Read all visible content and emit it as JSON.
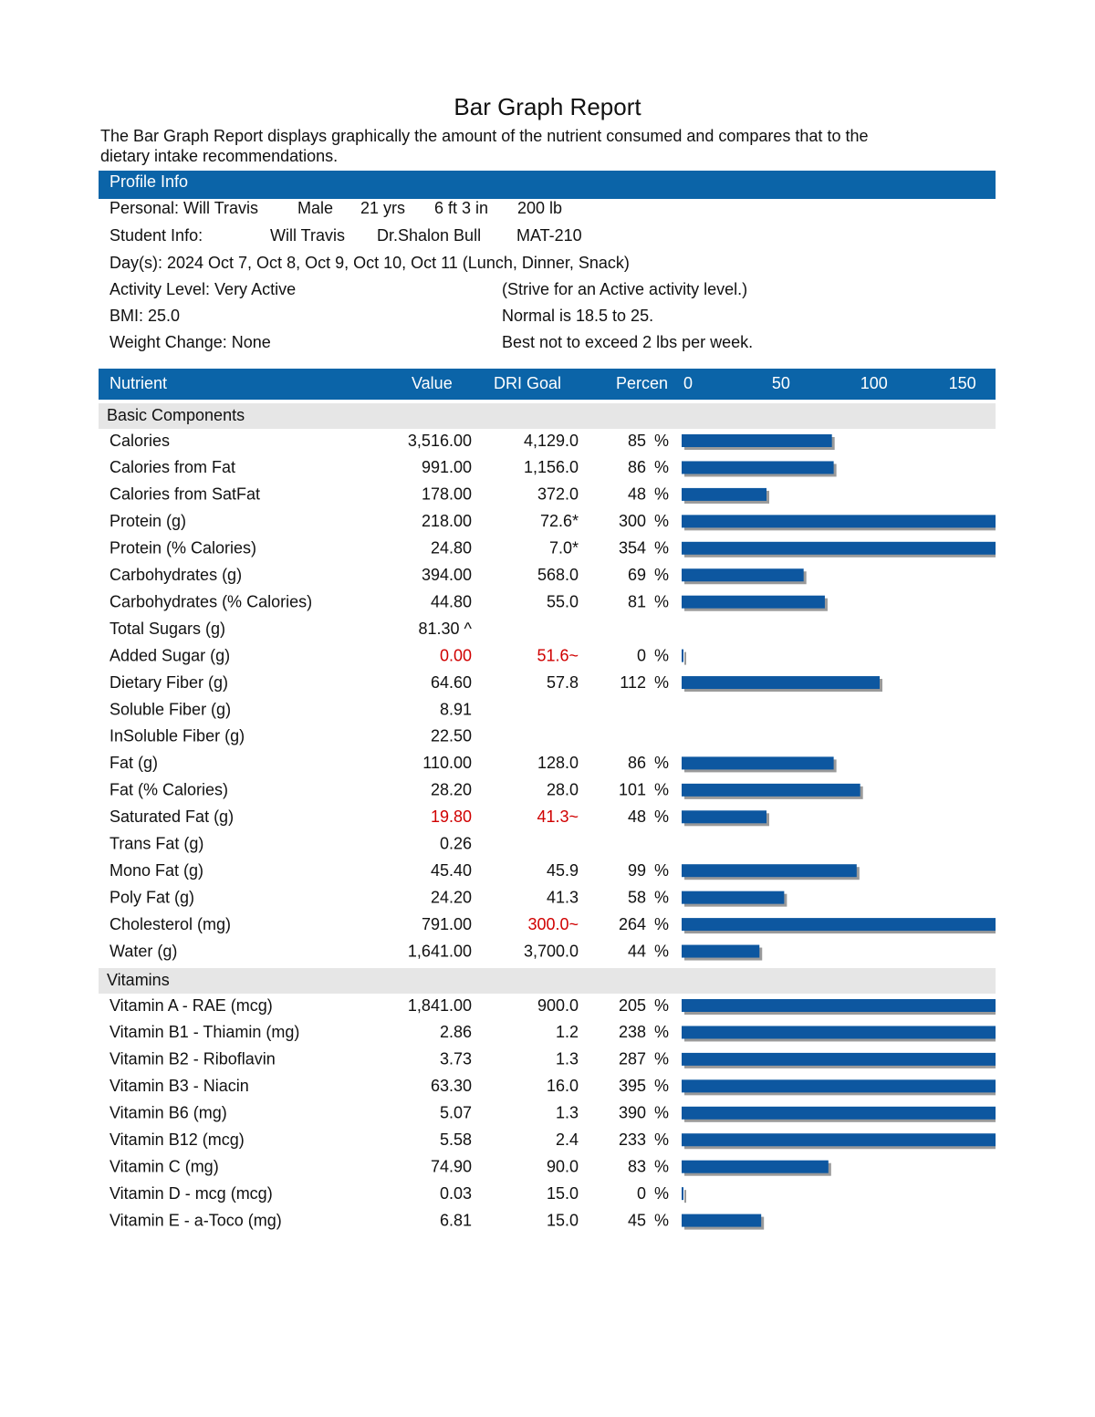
{
  "title": "Bar Graph Report",
  "description": [
    "The Bar Graph Report displays graphically the amount of the nutrient consumed and compares that to the",
    "dietary intake recommendations."
  ],
  "profile": {
    "header": "Profile Info",
    "rows": [
      [
        "Personal: Will Travis",
        "Male",
        "21 yrs",
        "6 ft 3 in",
        "200 lb"
      ],
      [
        "Student Info:",
        "Will Travis",
        "Dr.Shalon Bull",
        "MAT-210"
      ],
      [
        "Day(s):  2024 Oct 7, Oct 8, Oct 9, Oct 10, Oct 11 (Lunch, Dinner, Snack)"
      ],
      [
        "Activity Level: Very Active",
        "(Strive for an Active activity level.)"
      ],
      [
        "BMI: 25.0",
        "Normal is 18.5 to 25."
      ],
      [
        "Weight Change: None",
        "Best not to exceed 2 lbs per week."
      ]
    ]
  },
  "table": {
    "columns": [
      "Nutrient",
      "Value",
      "DRI Goal",
      "Percen"
    ],
    "percent_sign": "%",
    "bar_color": "#0d57a0",
    "xlim": [
      0,
      176
    ],
    "xticks": [
      0,
      50,
      100,
      150
    ],
    "sections": [
      {
        "name": "Basic Components",
        "rows": [
          {
            "nutrient": "Calories",
            "value": "3,516.00",
            "goal": "4,129.0",
            "percent": 85
          },
          {
            "nutrient": "Calories from Fat",
            "value": "991.00",
            "goal": "1,156.0",
            "percent": 86
          },
          {
            "nutrient": "Calories from SatFat",
            "value": "178.00",
            "goal": "372.0",
            "percent": 48
          },
          {
            "nutrient": "Protein (g)",
            "value": "218.00",
            "goal": "72.6*",
            "percent": 300
          },
          {
            "nutrient": "Protein (% Calories)",
            "value": "24.80",
            "goal": "7.0*",
            "percent": 354
          },
          {
            "nutrient": "Carbohydrates (g)",
            "value": "394.00",
            "goal": "568.0",
            "percent": 69
          },
          {
            "nutrient": "Carbohydrates (% Calories)",
            "value": "44.80",
            "goal": "55.0",
            "percent": 81
          },
          {
            "nutrient": "Total Sugars (g)",
            "value": "81.30 ^"
          },
          {
            "nutrient": "Added Sugar (g)",
            "value": "0.00",
            "goal": "51.6~",
            "percent": 0,
            "value_color": "#d00000",
            "goal_color": "#d00000"
          },
          {
            "nutrient": "Dietary Fiber (g)",
            "value": "64.60",
            "goal": "57.8",
            "percent": 112
          },
          {
            "nutrient": "Soluble Fiber (g)",
            "value": "8.91"
          },
          {
            "nutrient": "InSoluble Fiber (g)",
            "value": "22.50"
          },
          {
            "nutrient": "Fat (g)",
            "value": "110.00",
            "goal": "128.0",
            "percent": 86
          },
          {
            "nutrient": "Fat (% Calories)",
            "value": "28.20",
            "goal": "28.0",
            "percent": 101
          },
          {
            "nutrient": "Saturated Fat (g)",
            "value": "19.80",
            "goal": "41.3~",
            "percent": 48,
            "value_color": "#d00000",
            "goal_color": "#d00000"
          },
          {
            "nutrient": "Trans Fat (g)",
            "value": "0.26"
          },
          {
            "nutrient": "Mono Fat (g)",
            "value": "45.40",
            "goal": "45.9",
            "percent": 99
          },
          {
            "nutrient": "Poly Fat (g)",
            "value": "24.20",
            "goal": "41.3",
            "percent": 58
          },
          {
            "nutrient": "Cholesterol (mg)",
            "value": "791.00",
            "goal": "300.0~",
            "percent": 264,
            "goal_color": "#d00000"
          },
          {
            "nutrient": "Water (g)",
            "value": "1,641.00",
            "goal": "3,700.0",
            "percent": 44
          }
        ]
      },
      {
        "name": "Vitamins",
        "rows": [
          {
            "nutrient": "Vitamin A - RAE (mcg)",
            "value": "1,841.00",
            "goal": "900.0",
            "percent": 205
          },
          {
            "nutrient": "Vitamin B1 - Thiamin (mg)",
            "value": "2.86",
            "goal": "1.2",
            "percent": 238
          },
          {
            "nutrient": "Vitamin B2 - Riboflavin",
            "value": "3.73",
            "goal": "1.3",
            "percent": 287
          },
          {
            "nutrient": "Vitamin B3 - Niacin",
            "value": "63.30",
            "goal": "16.0",
            "percent": 395
          },
          {
            "nutrient": "Vitamin B6 (mg)",
            "value": "5.07",
            "goal": "1.3",
            "percent": 390
          },
          {
            "nutrient": "Vitamin B12 (mcg)",
            "value": "5.58",
            "goal": "2.4",
            "percent": 233
          },
          {
            "nutrient": "Vitamin C (mg)",
            "value": "74.90",
            "goal": "90.0",
            "percent": 83
          },
          {
            "nutrient": "Vitamin D - mcg (mcg)",
            "value": "0.03",
            "goal": "15.0",
            "percent": 0
          },
          {
            "nutrient": "Vitamin E - a-Toco (mg)",
            "value": "6.81",
            "goal": "15.0",
            "percent": 45
          }
        ]
      }
    ]
  }
}
